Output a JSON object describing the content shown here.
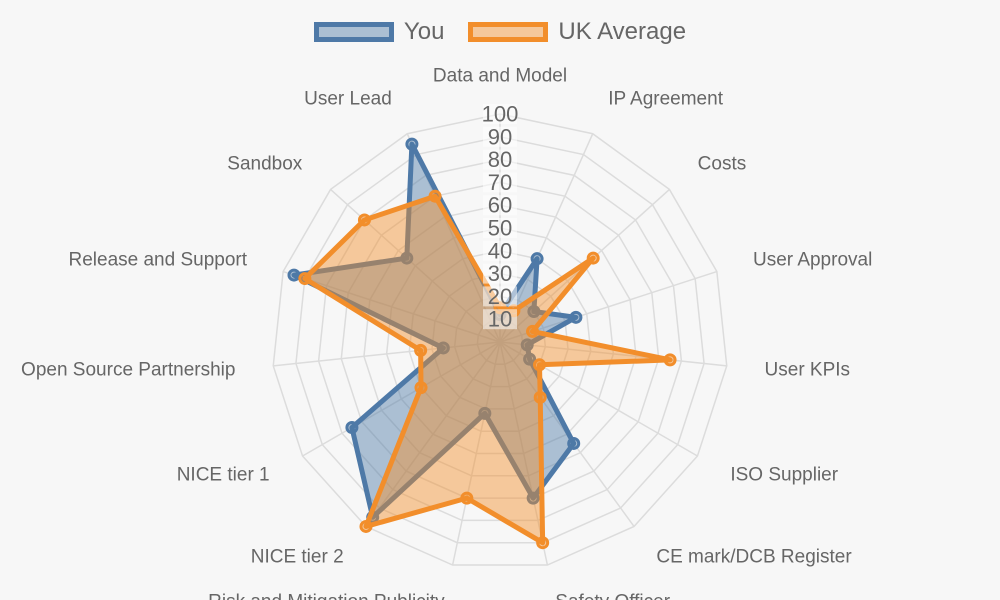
{
  "chart_data": {
    "type": "radar",
    "axes": [
      "Data and Model",
      "IP Agreement",
      "Costs",
      "User Approval",
      "User KPIs",
      "ISO Supplier",
      "CE mark/DCB Register",
      "Safety Officer",
      "Risk and Mitigation Publicity",
      "NICE tier 2",
      "NICE tier 1",
      "Open Source Partnership",
      "Release and Support",
      "Sandbox",
      "User Lead"
    ],
    "rlim": [
      0,
      100
    ],
    "ticks": [
      10,
      20,
      30,
      40,
      50,
      60,
      70,
      80,
      90,
      100
    ],
    "grid": true,
    "legend_position": "top",
    "series": [
      {
        "name": "You",
        "values": [
          12,
          40,
          20,
          35,
          12,
          15,
          55,
          70,
          32,
          95,
          75,
          25,
          95,
          55,
          95
        ],
        "color": "#4e79a7"
      },
      {
        "name": "UK Average",
        "values": [
          15,
          15,
          55,
          15,
          75,
          20,
          30,
          90,
          70,
          100,
          40,
          35,
          90,
          80,
          70
        ],
        "color": "#f28e2b"
      }
    ]
  }
}
